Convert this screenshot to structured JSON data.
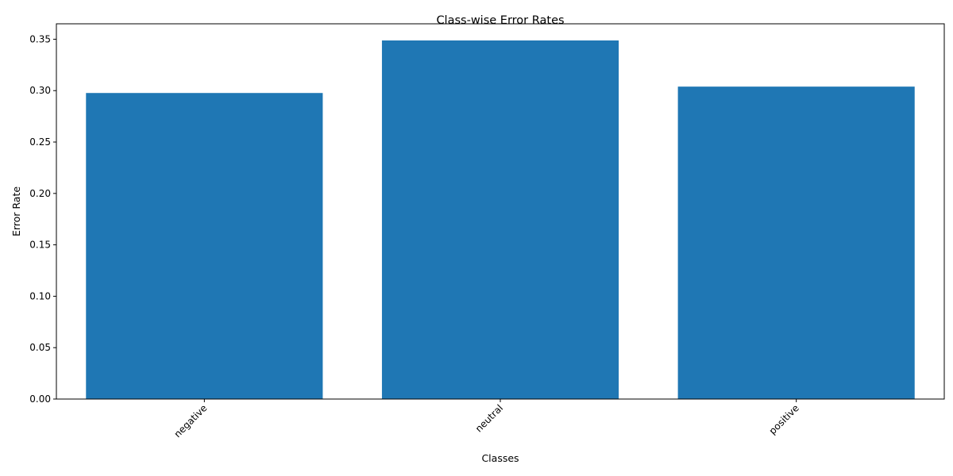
{
  "chart_data": {
    "type": "bar",
    "title": "Class-wise Error Rates",
    "xlabel": "Classes",
    "ylabel": "Error Rate",
    "categories": [
      "negative",
      "neutral",
      "positive"
    ],
    "values": [
      0.2977,
      0.3488,
      0.3039
    ],
    "ylim": [
      0,
      0.365
    ],
    "yticks": [
      0.0,
      0.05,
      0.1,
      0.15,
      0.2,
      0.25,
      0.3,
      0.35
    ],
    "ytick_labels": [
      "0.00",
      "0.05",
      "0.10",
      "0.15",
      "0.20",
      "0.25",
      "0.30",
      "0.35"
    ],
    "xtick_rotation_deg": 45,
    "grid": false,
    "legend": "none",
    "bar_color": "#1f77b4"
  }
}
